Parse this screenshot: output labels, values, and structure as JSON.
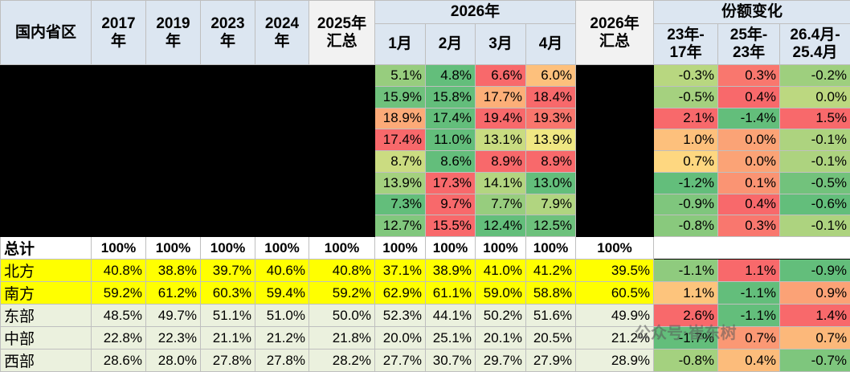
{
  "header": {
    "region": "国内省区",
    "annual": [
      [
        "2017",
        "年"
      ],
      [
        "2019",
        "年"
      ],
      [
        "2023",
        "年"
      ],
      [
        "2024",
        "年"
      ],
      [
        "2025年",
        "汇总"
      ]
    ],
    "group_2026": "2026年",
    "months": [
      "1月",
      "2月",
      "3月",
      "4月"
    ],
    "total_2026": [
      "2026年",
      "汇总"
    ],
    "group_change": "份额变化",
    "changes": [
      [
        "23年-",
        "17年"
      ],
      [
        "25年-",
        "23年"
      ],
      [
        "26.4月-",
        "25.4月"
      ]
    ]
  },
  "province_rows": [
    {
      "months": [
        "5.1%",
        "4.8%",
        "6.6%",
        "6.0%"
      ],
      "change": [
        "-0.3%",
        "0.3%",
        "-0.2%"
      ]
    },
    {
      "months": [
        "15.9%",
        "15.8%",
        "17.7%",
        "18.4%"
      ],
      "change": [
        "-0.5%",
        "0.4%",
        "0.0%"
      ]
    },
    {
      "months": [
        "18.9%",
        "17.4%",
        "19.4%",
        "19.3%"
      ],
      "change": [
        "2.1%",
        "-1.4%",
        "1.5%"
      ]
    },
    {
      "months": [
        "17.4%",
        "11.0%",
        "13.1%",
        "13.9%"
      ],
      "change": [
        "1.0%",
        "0.0%",
        "-0.1%"
      ]
    },
    {
      "months": [
        "8.7%",
        "8.6%",
        "8.9%",
        "8.9%"
      ],
      "change": [
        "0.7%",
        "0.0%",
        "-0.1%"
      ]
    },
    {
      "months": [
        "13.9%",
        "17.3%",
        "14.1%",
        "13.0%"
      ],
      "change": [
        "-1.2%",
        "0.1%",
        "-0.5%"
      ]
    },
    {
      "months": [
        "7.3%",
        "9.7%",
        "7.7%",
        "7.9%"
      ],
      "change": [
        "-0.9%",
        "0.4%",
        "-0.6%"
      ]
    },
    {
      "months": [
        "12.7%",
        "15.5%",
        "12.4%",
        "12.5%"
      ],
      "change": [
        "-0.8%",
        "0.3%",
        "-0.1%"
      ]
    }
  ],
  "total_row": {
    "label": "总计",
    "values": [
      "100%",
      "100%",
      "100%",
      "100%",
      "100%",
      "100%",
      "100%",
      "100%",
      "100%",
      "100%"
    ]
  },
  "summary_rows": [
    {
      "label": "北方",
      "values": [
        "40.8%",
        "38.8%",
        "39.7%",
        "40.6%",
        "40.8%",
        "37.1%",
        "38.9%",
        "41.0%",
        "41.2%",
        "39.5%"
      ],
      "change": [
        "-1.1%",
        "1.1%",
        "-0.9%"
      ]
    },
    {
      "label": "南方",
      "values": [
        "59.2%",
        "61.2%",
        "60.3%",
        "59.4%",
        "59.2%",
        "62.9%",
        "61.1%",
        "59.0%",
        "58.8%",
        "60.5%"
      ],
      "change": [
        "1.1%",
        "-1.1%",
        "0.9%"
      ]
    },
    {
      "label": "东部",
      "values": [
        "48.5%",
        "49.7%",
        "51.1%",
        "51.0%",
        "50.0%",
        "52.3%",
        "44.1%",
        "50.2%",
        "51.6%",
        "49.9%"
      ],
      "change": [
        "2.6%",
        "-1.1%",
        "1.4%"
      ]
    },
    {
      "label": "中部",
      "values": [
        "22.8%",
        "22.3%",
        "21.1%",
        "21.2%",
        "21.8%",
        "20.0%",
        "25.1%",
        "20.1%",
        "20.5%",
        "21.2%"
      ],
      "change": [
        "-1.7%",
        "0.7%",
        "0.7%"
      ]
    },
    {
      "label": "西部",
      "values": [
        "28.6%",
        "28.0%",
        "27.8%",
        "27.8%",
        "28.2%",
        "27.7%",
        "30.7%",
        "29.7%",
        "27.9%",
        "28.9%"
      ],
      "change": [
        "-0.8%",
        "0.4%",
        "-0.7%"
      ]
    }
  ],
  "watermark": "公众号·崔东树"
}
